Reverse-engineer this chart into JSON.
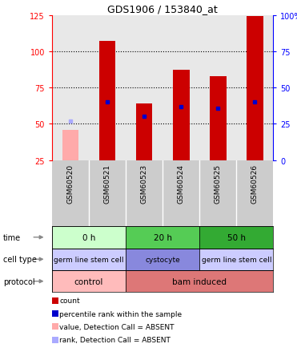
{
  "title": "GDS1906 / 153840_at",
  "samples": [
    "GSM60520",
    "GSM60521",
    "GSM60523",
    "GSM60524",
    "GSM60525",
    "GSM60526"
  ],
  "count_values": [
    null,
    107,
    64,
    87,
    83,
    124
  ],
  "count_absent": [
    46,
    null,
    null,
    null,
    null,
    null
  ],
  "percentile_values": [
    null,
    65,
    55,
    62,
    61,
    65
  ],
  "percentile_absent": [
    52,
    null,
    null,
    null,
    null,
    null
  ],
  "ylim_left": [
    25,
    125
  ],
  "ylim_right": [
    0,
    100
  ],
  "yticks_left": [
    25,
    50,
    75,
    100,
    125
  ],
  "yticks_right": [
    0,
    25,
    50,
    75,
    100
  ],
  "ytick_labels_right": [
    "0",
    "25",
    "50",
    "75",
    "100%"
  ],
  "bar_width": 0.45,
  "bar_color_red": "#cc0000",
  "bar_color_pink": "#ffaaaa",
  "dot_color_blue": "#0000cc",
  "dot_color_lightblue": "#aaaaff",
  "plot_bg": "#e8e8e8",
  "label_bg": "#cccccc",
  "time_data": [
    {
      "label": "0 h",
      "start": 0,
      "end": 2,
      "bg": "#ccffcc"
    },
    {
      "label": "20 h",
      "start": 2,
      "end": 4,
      "bg": "#55cc55"
    },
    {
      "label": "50 h",
      "start": 4,
      "end": 6,
      "bg": "#33aa33"
    }
  ],
  "cell_data": [
    {
      "label": "germ line stem cell",
      "start": 0,
      "end": 2,
      "bg": "#ccccff"
    },
    {
      "label": "cystocyte",
      "start": 2,
      "end": 4,
      "bg": "#8888dd"
    },
    {
      "label": "germ line stem cell",
      "start": 4,
      "end": 6,
      "bg": "#ccccff"
    }
  ],
  "proto_data": [
    {
      "label": "control",
      "start": 0,
      "end": 2,
      "bg": "#ffbbbb"
    },
    {
      "label": "bam induced",
      "start": 2,
      "end": 6,
      "bg": "#dd7777"
    }
  ],
  "legend_items": [
    {
      "color": "#cc0000",
      "label": "count"
    },
    {
      "color": "#0000cc",
      "label": "percentile rank within the sample"
    },
    {
      "color": "#ffaaaa",
      "label": "value, Detection Call = ABSENT"
    },
    {
      "color": "#aaaaff",
      "label": "rank, Detection Call = ABSENT"
    }
  ],
  "arrow_color": "#888888",
  "row_labels": [
    "time",
    "cell type",
    "protocol"
  ]
}
